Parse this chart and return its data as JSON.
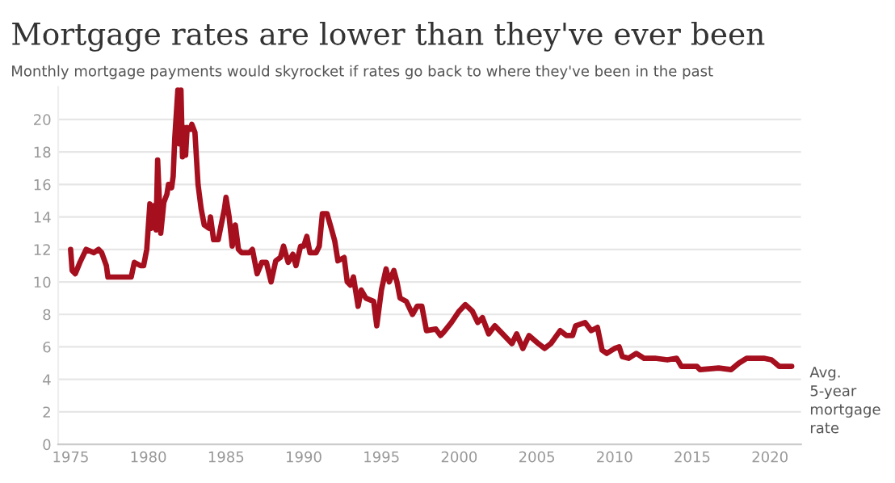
{
  "chart_data": {
    "type": "line",
    "title": "Mortgage rates are lower than they've ever been",
    "subtitle": "Monthly mortgage payments would skyrocket if rates go back to where they've been in the past",
    "series": [
      {
        "name": "Avg. 5-year mortgage rate",
        "color": "#a50f1e",
        "x": [
          1975.0,
          1975.1,
          1975.3,
          1975.6,
          1976.0,
          1976.5,
          1976.8,
          1977.0,
          1977.3,
          1977.4,
          1978.0,
          1978.9,
          1979.1,
          1979.5,
          1979.7,
          1979.9,
          1980.1,
          1980.2,
          1980.4,
          1980.5,
          1980.6,
          1980.8,
          1981.0,
          1981.2,
          1981.3,
          1981.5,
          1981.6,
          1981.7,
          1981.9,
          1982.0,
          1982.1,
          1982.2,
          1982.3,
          1982.4,
          1982.5,
          1982.7,
          1982.8,
          1983.0,
          1983.2,
          1983.4,
          1983.6,
          1983.9,
          1984.0,
          1984.2,
          1984.5,
          1984.9,
          1985.0,
          1985.2,
          1985.4,
          1985.6,
          1985.8,
          1986.0,
          1986.5,
          1986.7,
          1987.0,
          1987.3,
          1987.6,
          1987.9,
          1988.2,
          1988.5,
          1988.7,
          1989.0,
          1989.3,
          1989.5,
          1989.8,
          1990.0,
          1990.2,
          1990.4,
          1990.8,
          1991.0,
          1991.2,
          1991.5,
          1991.8,
          1992.0,
          1992.2,
          1992.6,
          1992.8,
          1993.0,
          1993.2,
          1993.5,
          1993.7,
          1994.0,
          1994.5,
          1994.7,
          1995.0,
          1995.3,
          1995.5,
          1995.8,
          1996.0,
          1996.2,
          1996.6,
          1997.0,
          1997.3,
          1997.6,
          1997.9,
          1998.5,
          1998.8,
          1999.0,
          1999.5,
          2000.0,
          2000.4,
          2000.85,
          2001.2,
          2001.5,
          2001.9,
          2002.3,
          2002.9,
          2003.4,
          2003.7,
          2004.1,
          2004.5,
          2005.1,
          2005.5,
          2005.9,
          2006.5,
          2006.9,
          2007.3,
          2007.5,
          2008.1,
          2008.5,
          2008.9,
          2009.2,
          2009.5,
          2010.0,
          2010.3,
          2010.5,
          2010.9,
          2011.4,
          2011.9,
          2012.6,
          2013.4,
          2014.0,
          2014.3,
          2015.3,
          2015.5,
          2016.7,
          2017.5,
          2018.0,
          2018.5,
          2019.6,
          2020.1,
          2020.6,
          2021.4
        ],
        "values": [
          12.0,
          10.7,
          10.5,
          11.2,
          12.0,
          11.8,
          12.0,
          11.8,
          11.0,
          10.3,
          10.3,
          10.3,
          11.2,
          11.0,
          11.0,
          12.0,
          14.8,
          13.3,
          14.7,
          13.2,
          17.5,
          13.0,
          14.9,
          15.4,
          16.0,
          15.8,
          16.5,
          18.8,
          21.8,
          18.5,
          21.8,
          17.7,
          19.5,
          17.8,
          19.5,
          19.4,
          19.7,
          19.2,
          16.0,
          14.5,
          13.5,
          13.3,
          14.0,
          12.6,
          12.6,
          14.5,
          15.2,
          14.0,
          12.2,
          13.5,
          12.0,
          11.8,
          11.8,
          12.0,
          10.5,
          11.2,
          11.2,
          10.0,
          11.3,
          11.5,
          12.2,
          11.2,
          11.7,
          11.0,
          12.2,
          12.2,
          12.8,
          11.8,
          11.8,
          12.2,
          14.2,
          14.2,
          13.2,
          12.5,
          11.3,
          11.5,
          10.0,
          9.8,
          10.3,
          8.5,
          9.5,
          9.0,
          8.8,
          7.3,
          9.5,
          10.8,
          10.0,
          10.7,
          10.0,
          9.0,
          8.8,
          8.0,
          8.5,
          8.5,
          7.0,
          7.1,
          6.7,
          6.9,
          7.5,
          8.2,
          8.6,
          8.2,
          7.5,
          7.8,
          6.8,
          7.3,
          6.7,
          6.2,
          6.8,
          5.9,
          6.7,
          6.2,
          5.9,
          6.2,
          7.0,
          6.7,
          6.7,
          7.3,
          7.5,
          7.0,
          7.2,
          5.8,
          5.6,
          5.9,
          6.0,
          5.4,
          5.3,
          5.6,
          5.3,
          5.3,
          5.2,
          5.3,
          4.8,
          4.8,
          4.6,
          4.7,
          4.6,
          5.0,
          5.3,
          5.3,
          5.2,
          4.8,
          4.8
        ]
      }
    ],
    "xlim": [
      1974.2,
      2022.0
    ],
    "xticks": [
      1975,
      1980,
      1985,
      1990,
      1995,
      2000,
      2005,
      2010,
      2015,
      2020
    ],
    "ylim": [
      0,
      22
    ],
    "yticks": [
      0,
      2,
      4,
      6,
      8,
      10,
      12,
      14,
      16,
      18,
      20
    ],
    "grid": "y",
    "legend": false
  }
}
